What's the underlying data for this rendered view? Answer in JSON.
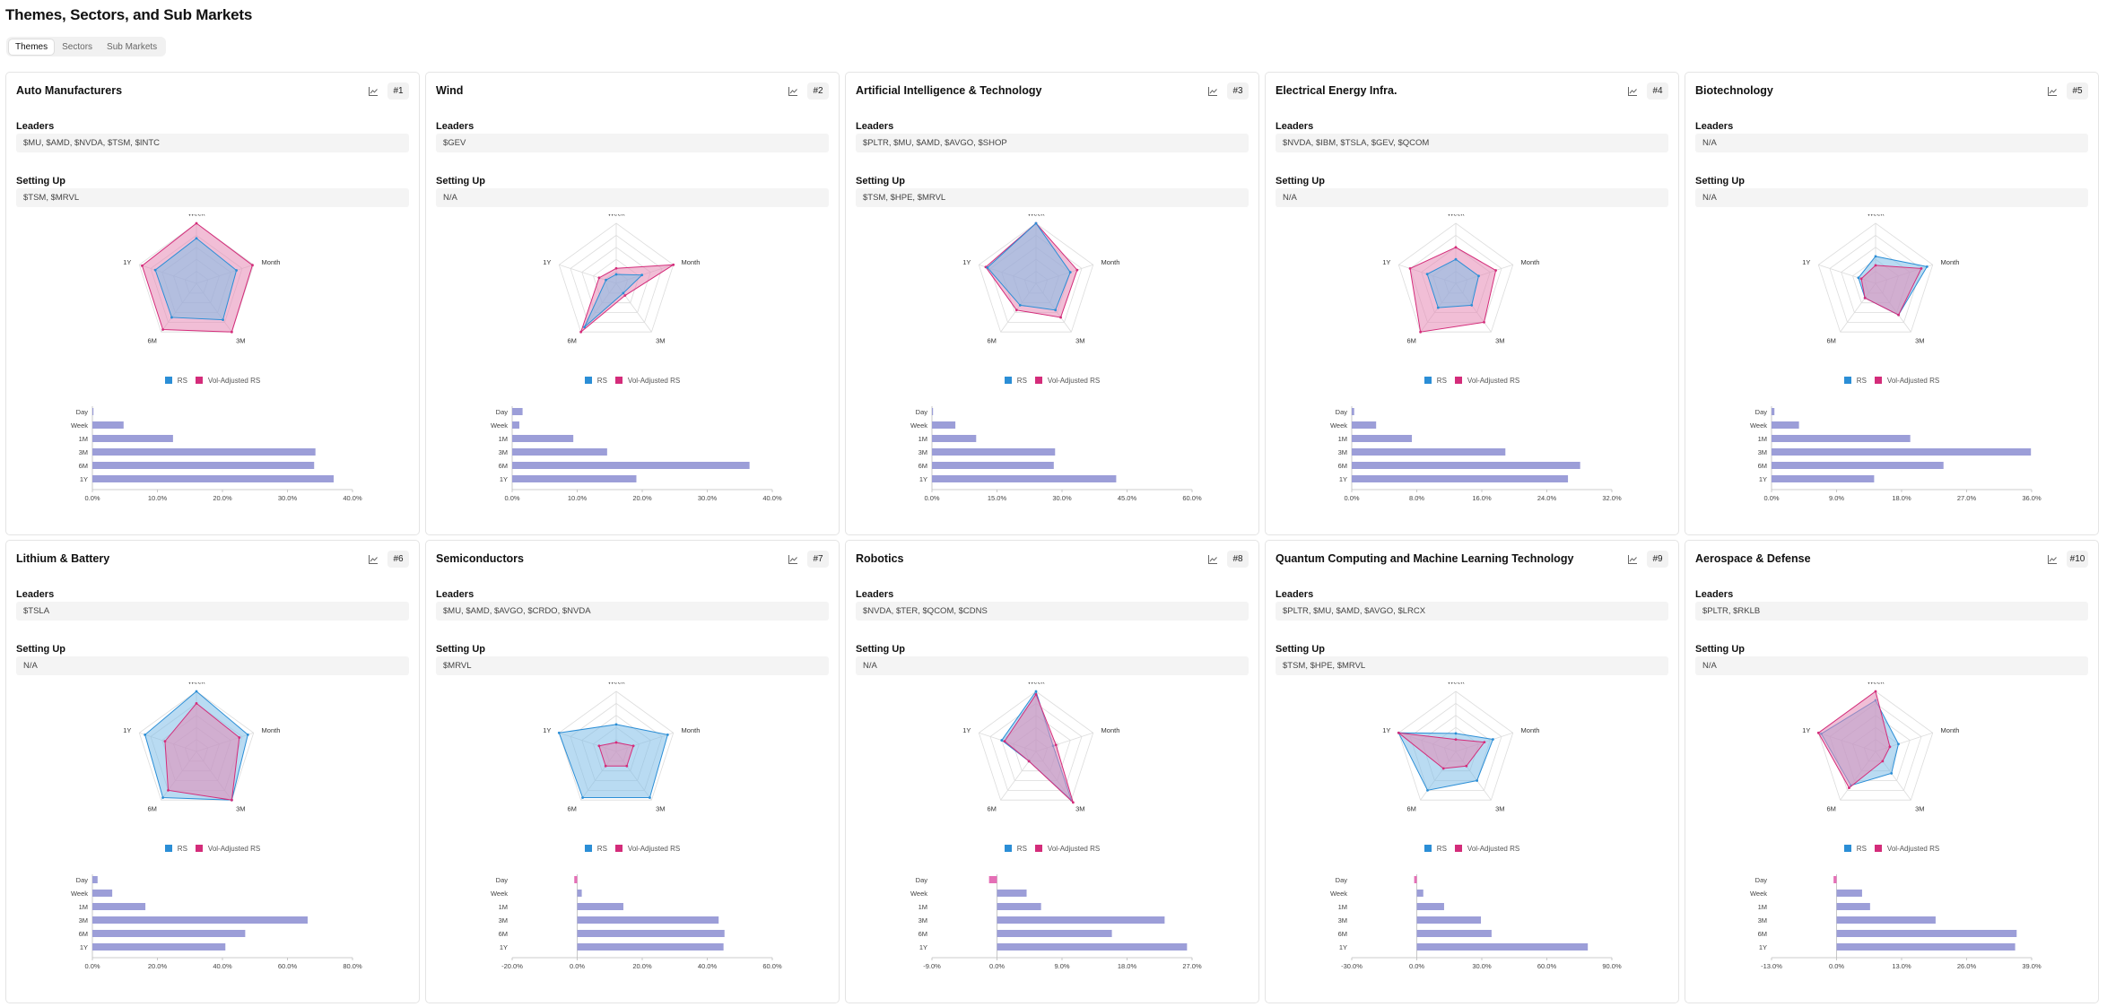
{
  "page": {
    "title": "Themes, Sectors, and Sub Markets"
  },
  "tabs": [
    {
      "label": "Themes",
      "active": true
    },
    {
      "label": "Sectors",
      "active": false
    },
    {
      "label": "Sub Markets",
      "active": false
    }
  ],
  "labels": {
    "leaders": "Leaders",
    "setting_up": "Setting Up"
  },
  "legend": {
    "rs": "RS",
    "vol": "Vol-Adjusted RS"
  },
  "colors": {
    "rs": "#2b8ed6",
    "rs_fill": "#7fbde8",
    "vol": "#d42c7a",
    "vol_fill": "#e688b5",
    "bar": "#9c9ed8",
    "bar_neg": "#e56fb6"
  },
  "chart_icon": "line-chart-icon",
  "cards": [
    {
      "name": "Auto Manufacturers",
      "rank": "#1",
      "leaders": "$MU, $AMD, $NVDA, $TSM, $INTC",
      "setting_up": "$TSM, $MRVL",
      "chart_data": {
        "radar": {
          "type": "radar",
          "axes": [
            "Week",
            "Month",
            "3M",
            "6M",
            "1Y"
          ],
          "range": [
            0,
            1
          ],
          "rs": [
            0.75,
            0.7,
            0.75,
            0.7,
            0.72
          ],
          "vol": [
            1.0,
            0.98,
            1.0,
            0.95,
            0.95
          ]
        },
        "bars": {
          "type": "bar",
          "orientation": "horizontal",
          "categories": [
            "Day",
            "Week",
            "1M",
            "3M",
            "6M",
            "1Y"
          ],
          "values": [
            0.1,
            4.8,
            12.4,
            34.3,
            34.1,
            37.1
          ],
          "xlim": [
            0,
            40
          ],
          "ticks": [
            "0.0%",
            "10.0%",
            "20.0%",
            "30.0%",
            "40.0%"
          ]
        }
      }
    },
    {
      "name": "Wind",
      "rank": "#2",
      "leaders": "$GEV",
      "setting_up": "N/A",
      "chart_data": {
        "radar": {
          "type": "radar",
          "axes": [
            "Week",
            "Month",
            "3M",
            "6M",
            "1Y"
          ],
          "range": [
            0,
            1
          ],
          "rs": [
            0.15,
            0.45,
            0.2,
            0.9,
            0.18
          ],
          "vol": [
            0.25,
            1.0,
            0.25,
            1.0,
            0.3
          ]
        },
        "bars": {
          "type": "bar",
          "orientation": "horizontal",
          "categories": [
            "Day",
            "Week",
            "1M",
            "3M",
            "6M",
            "1Y"
          ],
          "values": [
            1.6,
            1.1,
            9.4,
            14.6,
            36.5,
            19.1
          ],
          "xlim": [
            0,
            40
          ],
          "ticks": [
            "0.0%",
            "10.0%",
            "20.0%",
            "30.0%",
            "40.0%"
          ]
        }
      }
    },
    {
      "name": "Artificial Intelligence & Technology",
      "rank": "#3",
      "leaders": "$PLTR, $MU, $AMD, $AVGO, $SHOP",
      "setting_up": "$TSM, $HPE, $MRVL",
      "chart_data": {
        "radar": {
          "type": "radar",
          "axes": [
            "Week",
            "Month",
            "3M",
            "6M",
            "1Y"
          ],
          "range": [
            0,
            1
          ],
          "rs": [
            1.0,
            0.6,
            0.55,
            0.45,
            0.85
          ],
          "vol": [
            1.0,
            0.72,
            0.7,
            0.55,
            0.88
          ]
        },
        "bars": {
          "type": "bar",
          "orientation": "horizontal",
          "categories": [
            "Day",
            "Week",
            "1M",
            "3M",
            "6M",
            "1Y"
          ],
          "values": [
            0.2,
            5.4,
            10.2,
            28.4,
            28.1,
            42.5
          ],
          "xlim": [
            0,
            60
          ],
          "ticks": [
            "0.0%",
            "15.0%",
            "30.0%",
            "45.0%",
            "60.0%"
          ]
        }
      }
    },
    {
      "name": "Electrical Energy Infra.",
      "rank": "#4",
      "leaders": "$NVDA, $IBM, $TSLA, $GEV, $QCOM",
      "setting_up": "N/A",
      "chart_data": {
        "radar": {
          "type": "radar",
          "axes": [
            "Week",
            "Month",
            "3M",
            "6M",
            "1Y"
          ],
          "range": [
            0,
            1
          ],
          "rs": [
            0.4,
            0.4,
            0.45,
            0.5,
            0.5
          ],
          "vol": [
            0.6,
            0.7,
            0.8,
            1.0,
            0.8
          ]
        },
        "bars": {
          "type": "bar",
          "orientation": "horizontal",
          "categories": [
            "Day",
            "Week",
            "1M",
            "3M",
            "6M",
            "1Y"
          ],
          "values": [
            0.3,
            3.0,
            7.4,
            18.9,
            28.1,
            26.6
          ],
          "xlim": [
            0,
            32
          ],
          "ticks": [
            "0.0%",
            "8.0%",
            "16.0%",
            "24.0%",
            "32.0%"
          ]
        }
      }
    },
    {
      "name": "Biotechnology",
      "rank": "#5",
      "leaders": "N/A",
      "setting_up": "N/A",
      "chart_data": {
        "radar": {
          "type": "radar",
          "axes": [
            "Week",
            "Month",
            "3M",
            "6M",
            "1Y"
          ],
          "range": [
            0,
            1
          ],
          "rs": [
            0.45,
            0.9,
            0.65,
            0.3,
            0.3
          ],
          "vol": [
            0.3,
            0.8,
            0.65,
            0.3,
            0.25
          ]
        },
        "bars": {
          "type": "bar",
          "orientation": "horizontal",
          "categories": [
            "Day",
            "Week",
            "1M",
            "3M",
            "6M",
            "1Y"
          ],
          "values": [
            0.4,
            3.8,
            19.2,
            35.9,
            23.8,
            14.2
          ],
          "xlim": [
            0,
            36
          ],
          "ticks": [
            "0.0%",
            "9.0%",
            "18.0%",
            "27.0%",
            "36.0%"
          ]
        }
      }
    },
    {
      "name": "Lithium & Battery",
      "rank": "#6",
      "leaders": "$TSLA",
      "setting_up": "N/A",
      "chart_data": {
        "radar": {
          "type": "radar",
          "axes": [
            "Week",
            "Month",
            "3M",
            "6M",
            "1Y"
          ],
          "range": [
            0,
            1
          ],
          "rs": [
            1.0,
            0.9,
            1.0,
            0.95,
            0.9
          ],
          "vol": [
            0.8,
            0.75,
            1.0,
            0.8,
            0.55
          ]
        },
        "bars": {
          "type": "bar",
          "orientation": "horizontal",
          "categories": [
            "Day",
            "Week",
            "1M",
            "3M",
            "6M",
            "1Y"
          ],
          "values": [
            1.6,
            6.1,
            16.3,
            66.2,
            47.0,
            40.9
          ],
          "xlim": [
            0,
            80
          ],
          "ticks": [
            "0.0%",
            "20.0%",
            "40.0%",
            "60.0%",
            "80.0%"
          ]
        }
      }
    },
    {
      "name": "Semiconductors",
      "rank": "#7",
      "leaders": "$MU, $AMD, $AVGO, $CRDO, $NVDA",
      "setting_up": "$MRVL",
      "chart_data": {
        "radar": {
          "type": "radar",
          "axes": [
            "Week",
            "Month",
            "3M",
            "6M",
            "1Y"
          ],
          "range": [
            0,
            1
          ],
          "rs": [
            0.45,
            0.9,
            0.95,
            0.95,
            1.0
          ],
          "vol": [
            0.15,
            0.3,
            0.3,
            0.3,
            0.3
          ]
        },
        "bars": {
          "type": "bar",
          "orientation": "horizontal",
          "categories": [
            "Day",
            "Week",
            "1M",
            "3M",
            "6M",
            "1Y"
          ],
          "values": [
            -0.9,
            1.4,
            14.2,
            43.5,
            45.3,
            45.0
          ],
          "xlim": [
            -20,
            60
          ],
          "ticks": [
            "-20.0%",
            "0.0%",
            "20.0%",
            "40.0%",
            "60.0%"
          ]
        }
      }
    },
    {
      "name": "Robotics",
      "rank": "#8",
      "leaders": "$NVDA, $TER, $QCOM, $CDNS",
      "setting_up": "N/A",
      "chart_data": {
        "radar": {
          "type": "radar",
          "axes": [
            "Week",
            "Month",
            "3M",
            "6M",
            "1Y"
          ],
          "range": [
            0,
            1
          ],
          "rs": [
            1.0,
            0.3,
            1.0,
            0.2,
            0.6
          ],
          "vol": [
            0.95,
            0.35,
            1.05,
            0.2,
            0.55
          ]
        },
        "bars": {
          "type": "bar",
          "orientation": "horizontal",
          "categories": [
            "Day",
            "Week",
            "1M",
            "3M",
            "6M",
            "1Y"
          ],
          "values": [
            -1.1,
            4.1,
            6.1,
            23.2,
            15.9,
            26.3
          ],
          "xlim": [
            -9,
            27
          ],
          "ticks": [
            "-9.0%",
            "0.0%",
            "9.0%",
            "18.0%",
            "27.0%"
          ]
        }
      }
    },
    {
      "name": "Quantum Computing and Machine Learning Technology",
      "rank": "#9",
      "leaders": "$PLTR, $MU, $AMD, $AVGO, $LRCX",
      "setting_up": "$TSM, $HPE, $MRVL",
      "chart_data": {
        "radar": {
          "type": "radar",
          "axes": [
            "Week",
            "Month",
            "3M",
            "6M",
            "1Y"
          ],
          "range": [
            0,
            1
          ],
          "rs": [
            0.3,
            0.65,
            0.6,
            0.8,
            1.0
          ],
          "vol": [
            0.2,
            0.5,
            0.3,
            0.35,
            1.0
          ]
        },
        "bars": {
          "type": "bar",
          "orientation": "horizontal",
          "categories": [
            "Day",
            "Week",
            "1M",
            "3M",
            "6M",
            "1Y"
          ],
          "values": [
            -1.2,
            3.0,
            12.6,
            29.6,
            34.5,
            78.9
          ],
          "xlim": [
            -30,
            90
          ],
          "ticks": [
            "-30.0%",
            "0.0%",
            "30.0%",
            "60.0%",
            "90.0%"
          ]
        }
      }
    },
    {
      "name": "Aerospace & Defense",
      "rank": "#10",
      "leaders": "$PLTR, $RKLB",
      "setting_up": "N/A",
      "chart_data": {
        "radar": {
          "type": "radar",
          "axes": [
            "Week",
            "Month",
            "3M",
            "6M",
            "1Y"
          ],
          "range": [
            0,
            1
          ],
          "rs": [
            0.85,
            0.4,
            0.45,
            0.7,
            0.95
          ],
          "vol": [
            1.0,
            0.25,
            0.2,
            0.75,
            1.0
          ]
        },
        "bars": {
          "type": "bar",
          "orientation": "horizontal",
          "categories": [
            "Day",
            "Week",
            "1M",
            "3M",
            "6M",
            "1Y"
          ],
          "values": [
            -0.6,
            5.1,
            6.7,
            19.8,
            36.0,
            35.7
          ],
          "xlim": [
            -13,
            39
          ],
          "ticks": [
            "-13.0%",
            "0.0%",
            "13.0%",
            "26.0%",
            "39.0%"
          ]
        }
      }
    }
  ]
}
